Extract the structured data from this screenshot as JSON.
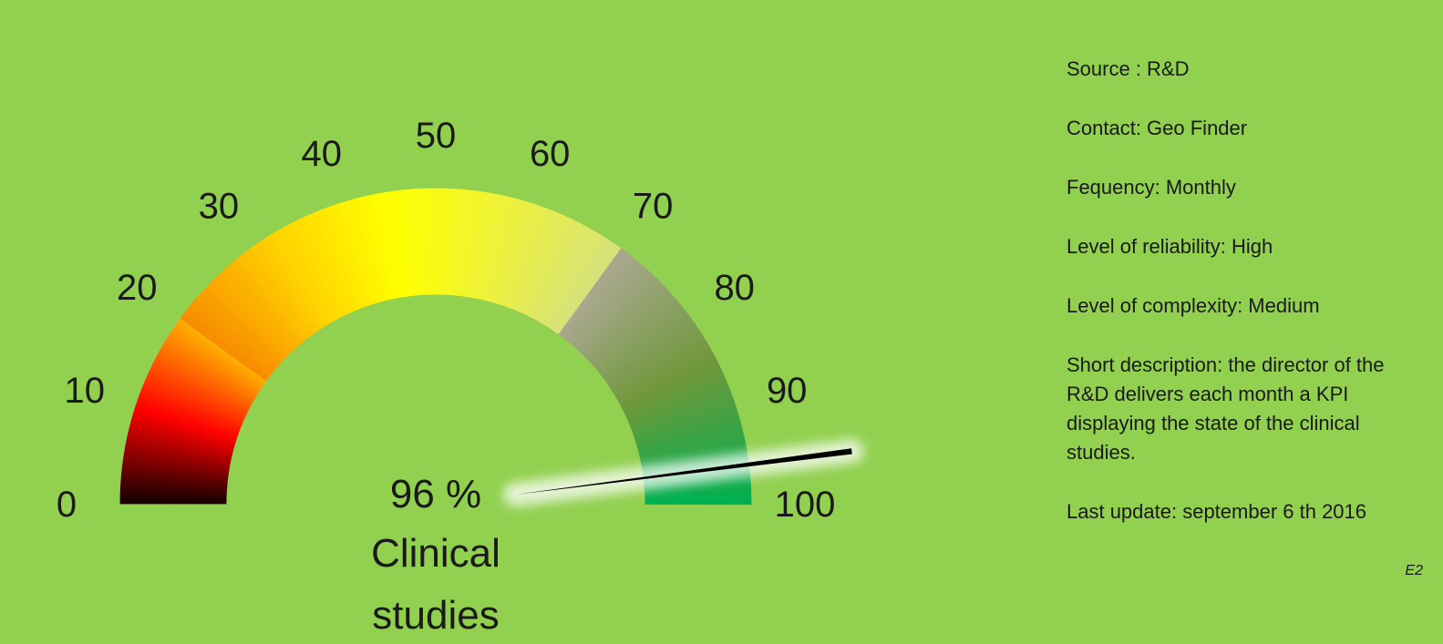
{
  "chart_data": {
    "type": "gauge",
    "value": 96,
    "value_label": "96 %",
    "label_lines": [
      "Clinical",
      "studies"
    ],
    "min": 0,
    "max": 100,
    "ticks": [
      "0",
      "10",
      "20",
      "30",
      "40",
      "50",
      "60",
      "70",
      "80",
      "90",
      "100"
    ],
    "bands": [
      {
        "from": 0,
        "to": 20,
        "colors": [
          "#120000",
          "#ff0000",
          "#ffb000"
        ]
      },
      {
        "from": 20,
        "to": 70,
        "colors": [
          "#f78b00",
          "#ffd200",
          "#ffff00",
          "#eef23a",
          "#d6e27a"
        ]
      },
      {
        "from": 70,
        "to": 100,
        "colors": [
          "#a9a88f",
          "#6f983a",
          "#00b050"
        ]
      }
    ]
  },
  "info": {
    "source": "Source : R&D",
    "contact": "Contact: Geo Finder",
    "frequency": "Fequency: Monthly",
    "reliability": "Level of reliability: High",
    "complexity": "Level of complexity: Medium",
    "description": "Short description:  the director of the R&D delivers each month a KPI displaying the state of the clinical studies.",
    "last_update": "Last update:  september 6 th 2016"
  },
  "corner_code": "E2",
  "colors": {
    "background": "#92d050",
    "needle": "#000000"
  }
}
